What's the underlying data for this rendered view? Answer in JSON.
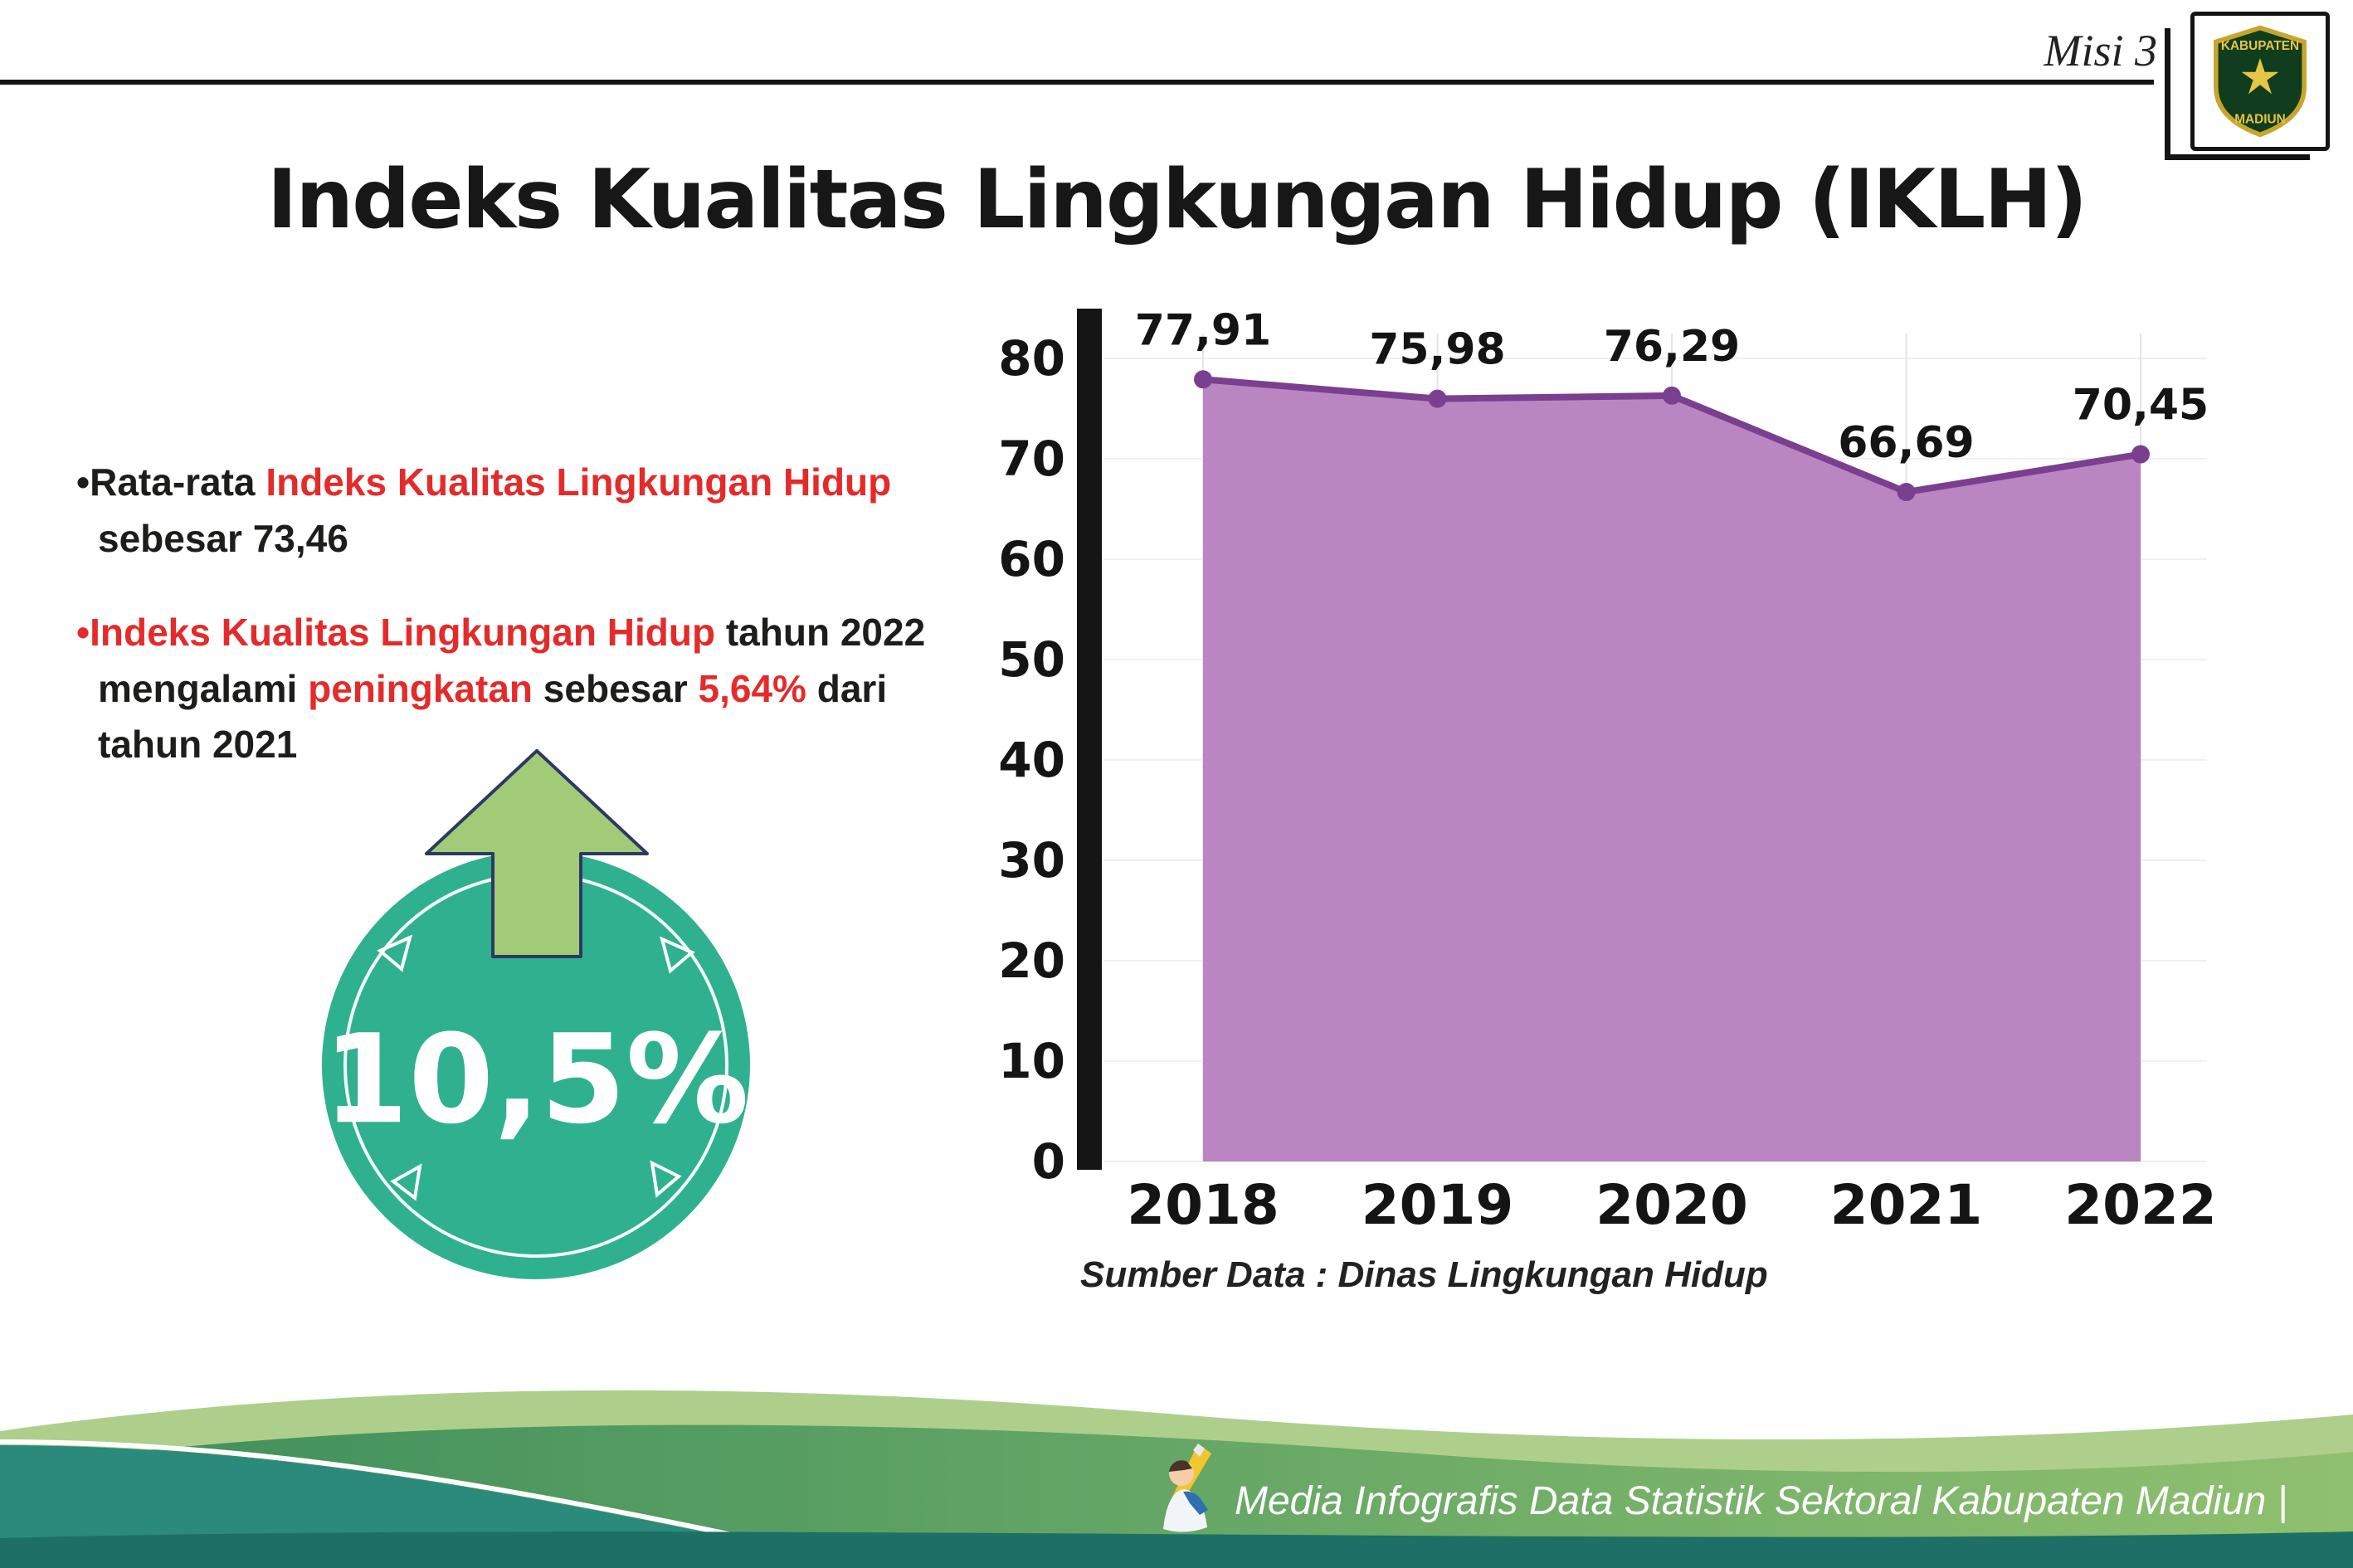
{
  "header": {
    "misi": "Misi 3",
    "logo": {
      "top": "KABUPATEN",
      "bottom": "MADIUN"
    }
  },
  "title": "Indeks Kualitas Lingkungan Hidup (IKLH)",
  "bullets": [
    {
      "marker": "•",
      "segments": [
        {
          "text": "Rata-rata ",
          "color": "text"
        },
        {
          "text": "Indeks Kualitas Lingkungan Hidup",
          "color": "red"
        },
        {
          "text": " sebesar 73,46",
          "color": "text"
        }
      ]
    },
    {
      "marker": "•",
      "segments": [
        {
          "text": "Indeks Kualitas Lingkungan Hidup",
          "color": "red"
        },
        {
          "text": " tahun 2022 mengalami ",
          "color": "text"
        },
        {
          "text": "peningkatan",
          "color": "red"
        },
        {
          "text": " sebesar ",
          "color": "text"
        },
        {
          "text": "5,64%",
          "color": "red"
        },
        {
          "text": " dari tahun 2021",
          "color": "text"
        }
      ]
    }
  ],
  "badge": {
    "value": "10,5%"
  },
  "chart_data": {
    "type": "area",
    "title": "Indeks Kualitas Lingkungan Hidup (IKLH)",
    "categories": [
      "2018",
      "2019",
      "2020",
      "2021",
      "2022"
    ],
    "values": [
      77.91,
      75.98,
      76.29,
      66.69,
      70.45
    ],
    "value_labels": [
      "77,91",
      "75,98",
      "76,29",
      "66,69",
      "70,45"
    ],
    "ylim": [
      0,
      80
    ],
    "yticks": [
      0,
      10,
      20,
      30,
      40,
      50,
      60,
      70,
      80
    ],
    "xlabel": "",
    "ylabel": "",
    "grid": true,
    "legend": "none",
    "source": "Sumber Data : Dinas Lingkungan Hidup"
  },
  "footer": {
    "text": "Media Infografis Data Statistik Sektoral Kabupaten Madiun |"
  },
  "colors": {
    "text": "#1d1d1b",
    "red": "#e42b2b",
    "teal": "#2fb190",
    "arrow": "#a2cb77",
    "area": "#ba86c2",
    "line": "#7b3f8f",
    "axis": "#141414",
    "footer_text": "#ffffff"
  }
}
